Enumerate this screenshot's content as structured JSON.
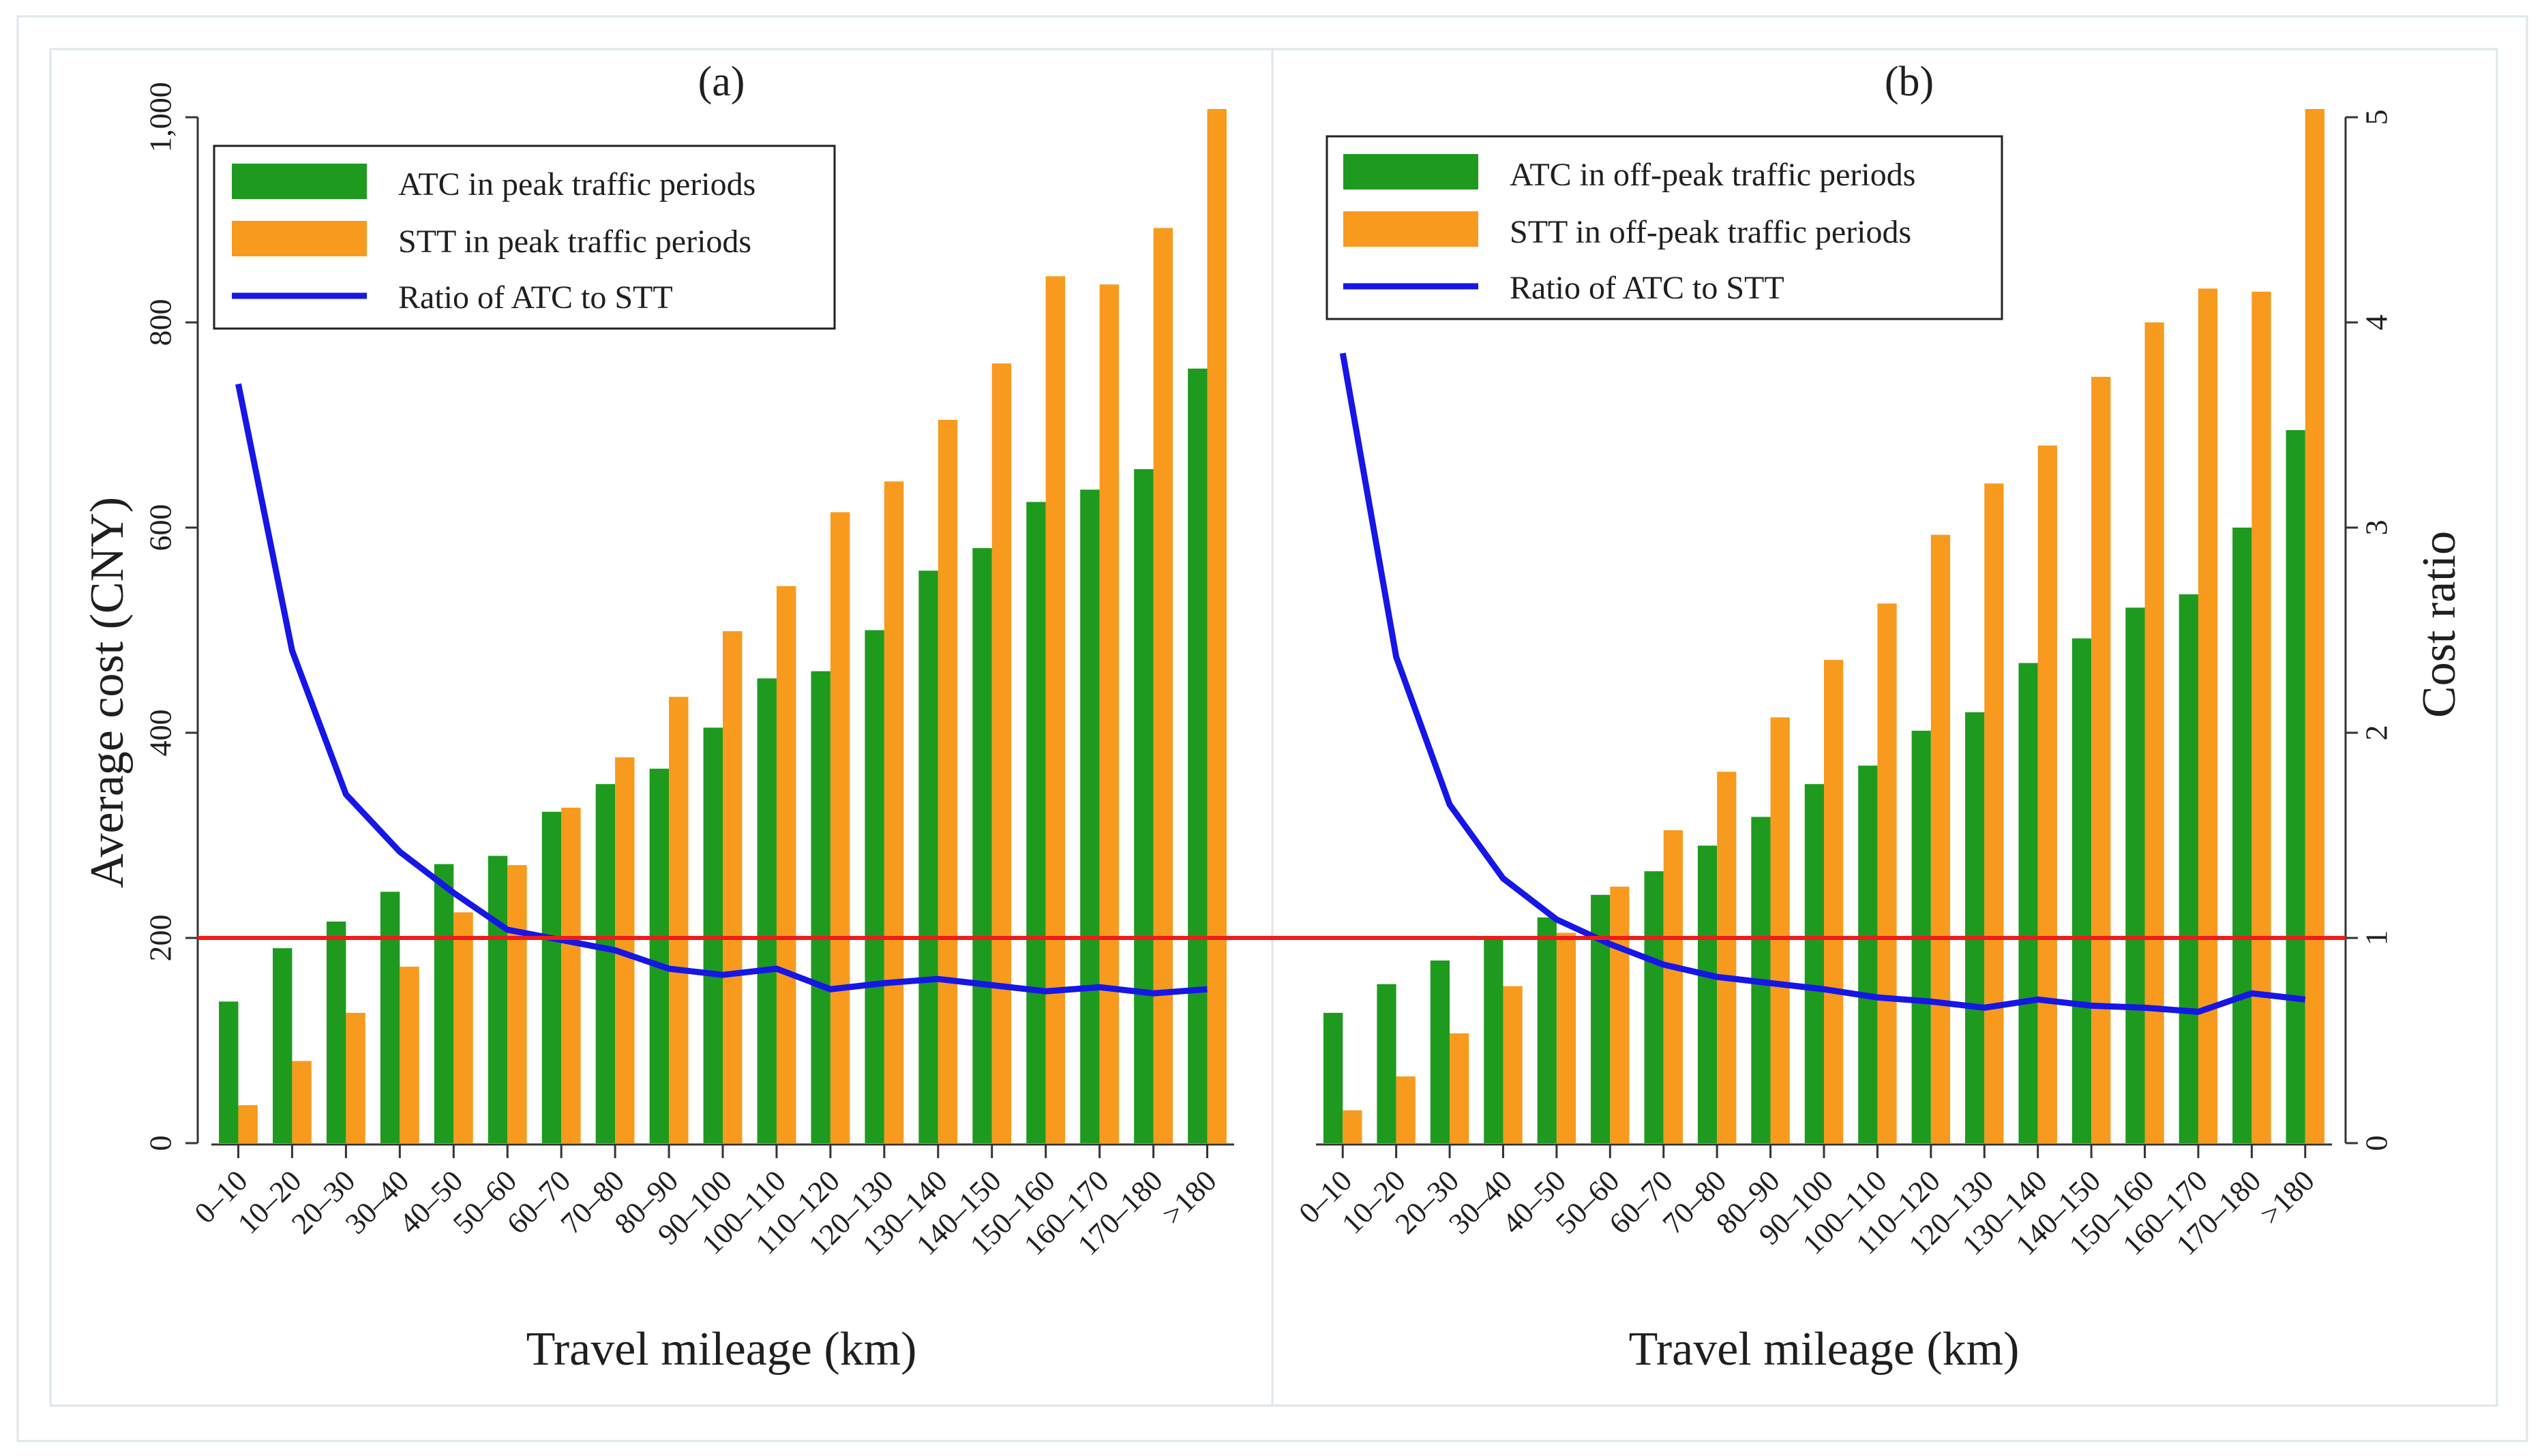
{
  "chart_data": [
    {
      "type": "bar",
      "panel_label": "(a)",
      "categories": [
        "0–10",
        "10–20",
        "20–30",
        "30–40",
        "40–50",
        "50–60",
        "60–70",
        "70–80",
        "80–90",
        "90–100",
        "100–110",
        "110–120",
        "120–130",
        "130–140",
        "140–150",
        "150–160",
        "160–170",
        "170–180",
        ">180"
      ],
      "series": [
        {
          "name": "ATC in peak traffic periods",
          "kind": "bar",
          "axis": "left",
          "color": "#1e9a1e",
          "values": [
            138,
            190,
            216,
            245,
            272,
            280,
            323,
            350,
            365,
            405,
            453,
            460,
            500,
            558,
            580,
            625,
            637,
            657,
            755
          ]
        },
        {
          "name": "STT in peak traffic periods",
          "kind": "bar",
          "axis": "left",
          "color": "#f79a1e",
          "values": [
            37,
            80,
            127,
            172,
            225,
            271,
            327,
            376,
            435,
            499,
            543,
            615,
            645,
            705,
            760,
            845,
            837,
            892,
            1008
          ]
        },
        {
          "name": "Ratio of ATC to STT",
          "kind": "line",
          "axis": "right",
          "color": "#1616e6",
          "values": [
            3.7,
            2.4,
            1.7,
            1.42,
            1.22,
            1.04,
            0.99,
            0.94,
            0.85,
            0.82,
            0.85,
            0.75,
            0.78,
            0.8,
            0.77,
            0.74,
            0.76,
            0.73,
            0.75
          ]
        }
      ],
      "xlabel": "Travel mileage (km)",
      "ylabel": "Average cost (CNY)",
      "ylim": [
        0,
        1000
      ],
      "yticks": [
        0,
        200,
        400,
        600,
        800,
        1000
      ],
      "ytick_labels": [
        "0",
        "200",
        "400",
        "600",
        "800",
        "1,000"
      ],
      "legend": "top-left"
    },
    {
      "type": "bar",
      "panel_label": "(b)",
      "categories": [
        "0–10",
        "10–20",
        "20–30",
        "30–40",
        "40–50",
        "50–60",
        "60–70",
        "70–80",
        "80–90",
        "90–100",
        "100–110",
        "110–120",
        "120–130",
        "130–140",
        "140–150",
        "150–160",
        "160–170",
        "170–180",
        ">180"
      ],
      "series": [
        {
          "name": "ATC in off-peak traffic periods",
          "kind": "bar",
          "axis": "left",
          "color": "#1e9a1e",
          "values": [
            127,
            155,
            178,
            198,
            220,
            242,
            265,
            290,
            318,
            350,
            368,
            402,
            420,
            468,
            492,
            522,
            535,
            600,
            695
          ]
        },
        {
          "name": "STT in off-peak traffic periods",
          "kind": "bar",
          "axis": "left",
          "color": "#f79a1e",
          "values": [
            32,
            65,
            107,
            153,
            205,
            250,
            305,
            362,
            415,
            471,
            526,
            593,
            643,
            680,
            747,
            800,
            833,
            830,
            1008
          ]
        },
        {
          "name": "Ratio of ATC to STT",
          "kind": "line",
          "axis": "right",
          "color": "#1616e6",
          "values": [
            3.85,
            2.37,
            1.65,
            1.29,
            1.09,
            0.97,
            0.87,
            0.81,
            0.78,
            0.75,
            0.71,
            0.69,
            0.66,
            0.7,
            0.67,
            0.66,
            0.64,
            0.73,
            0.7
          ]
        }
      ],
      "xlabel": "Travel mileage (km)",
      "y2label": "Cost ratio",
      "ylim": [
        0,
        1000
      ],
      "y2lim": [
        0,
        5
      ],
      "y2ticks": [
        0,
        1,
        2,
        3,
        4,
        5
      ],
      "y2tick_labels": [
        "0",
        "1",
        "2",
        "3",
        "4",
        "5"
      ],
      "legend": "top-left"
    }
  ],
  "reference_line": {
    "axis": "right",
    "value": 1,
    "color": "#ee1c1c"
  }
}
